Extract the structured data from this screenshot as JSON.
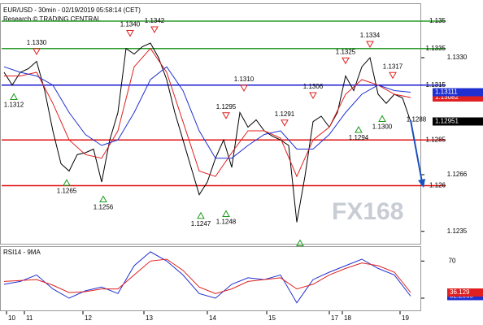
{
  "chart_data": {
    "type": "line",
    "title": "EUR/USD - 30min - 02/19/2019 05:58:14 (CET)",
    "subtitle": "Research © TRADING CENTRAL",
    "watermark": "FX168",
    "xlim": [
      -0.5,
      51.3
    ],
    "xticks": [
      {
        "value": 0.3,
        "label": "10"
      },
      {
        "value": 2.5,
        "label": "11"
      },
      {
        "value": 9.7,
        "label": "12"
      },
      {
        "value": 17.2,
        "label": "13"
      },
      {
        "value": 25,
        "label": "14"
      },
      {
        "value": 32.3,
        "label": "15"
      },
      {
        "value": 40,
        "label": "17"
      },
      {
        "value": 41.6,
        "label": "18"
      },
      {
        "value": 48.7,
        "label": "19"
      }
    ],
    "ylim": [
      1.12291,
      1.13571
    ],
    "yticks": [
      {
        "value": 1.133,
        "label": "1.1330"
      },
      1.1266,
      1.1235
    ],
    "series": [
      {
        "name": "Price",
        "color": "#000000",
        "x": [
          0,
          1,
          2,
          3,
          4,
          5,
          6,
          7,
          8,
          9,
          10,
          11,
          12,
          13,
          14,
          15,
          16,
          17,
          18,
          19,
          20,
          21,
          22,
          23,
          24,
          25,
          26,
          27,
          28,
          29,
          30,
          31,
          32,
          33,
          34,
          35,
          36,
          37,
          38,
          39,
          40,
          41,
          42,
          43,
          44,
          45,
          46,
          47,
          48,
          49,
          50
        ],
        "values": [
          1.1322,
          1.1315,
          1.1322,
          1.1324,
          1.1328,
          1.1312,
          1.129,
          1.1272,
          1.1268,
          1.1277,
          1.1278,
          1.128,
          1.1262,
          1.1285,
          1.13,
          1.1335,
          1.1332,
          1.1336,
          1.1338,
          1.133,
          1.1318,
          1.13,
          1.1285,
          1.127,
          1.1255,
          1.1262,
          1.1275,
          1.1285,
          1.127,
          1.13,
          1.1292,
          1.1296,
          1.129,
          1.1287,
          1.1285,
          1.1282,
          1.124,
          1.1265,
          1.1295,
          1.1298,
          1.1292,
          1.13,
          1.132,
          1.1312,
          1.1325,
          1.133,
          1.131,
          1.1305,
          1.131,
          1.1308,
          1.12951
        ]
      },
      {
        "name": "MA fast",
        "color": "#e02020",
        "x": [
          0,
          2,
          4,
          6,
          8,
          10,
          12,
          14,
          16,
          18,
          20,
          22,
          24,
          26,
          28,
          30,
          32,
          34,
          36,
          38,
          40,
          42,
          44,
          46,
          48,
          50
        ],
        "values": [
          1.132,
          1.132,
          1.1322,
          1.1305,
          1.1285,
          1.1277,
          1.1275,
          1.129,
          1.1325,
          1.1335,
          1.1322,
          1.1295,
          1.1268,
          1.1265,
          1.1278,
          1.129,
          1.129,
          1.1286,
          1.1265,
          1.1285,
          1.1292,
          1.131,
          1.1318,
          1.1315,
          1.131,
          1.13082
        ]
      },
      {
        "name": "MA slow",
        "color": "#2030d0",
        "x": [
          0,
          2,
          4,
          6,
          8,
          10,
          12,
          14,
          16,
          18,
          20,
          22,
          24,
          26,
          28,
          30,
          32,
          34,
          36,
          38,
          40,
          42,
          44,
          46,
          48,
          50
        ],
        "values": [
          1.1325,
          1.1322,
          1.132,
          1.1315,
          1.13,
          1.1288,
          1.1282,
          1.1285,
          1.13,
          1.1318,
          1.1325,
          1.1312,
          1.129,
          1.1275,
          1.1275,
          1.1282,
          1.1288,
          1.129,
          1.128,
          1.128,
          1.1288,
          1.13,
          1.131,
          1.1315,
          1.1312,
          1.13111
        ]
      }
    ],
    "levels": [
      {
        "value": 1.135,
        "color": "#2a9a2a"
      },
      {
        "value": 1.1335,
        "color": "#2a9a2a"
      },
      {
        "value": 1.1315,
        "color": "#1a1ad0"
      },
      {
        "value": 1.1285,
        "color": "#e01010"
      },
      {
        "value": 1.126,
        "color": "#e01010"
      }
    ],
    "annotations": [
      {
        "x": 4,
        "value": 1.133,
        "label": "1.1330",
        "marker": "down"
      },
      {
        "x": 1.2,
        "value": 1.1312,
        "label": "1.1312",
        "marker": "up"
      },
      {
        "x": 15.5,
        "value": 1.134,
        "label": "1.1340",
        "marker": "down"
      },
      {
        "x": 18.5,
        "value": 1.1342,
        "label": "1.1342",
        "marker": "down"
      },
      {
        "x": 7.7,
        "value": 1.1265,
        "label": "1.1265",
        "marker": "up"
      },
      {
        "x": 12.2,
        "value": 1.1256,
        "label": "1.1256",
        "marker": "up"
      },
      {
        "x": 29.5,
        "value": 1.131,
        "label": "1.1310",
        "marker": "down"
      },
      {
        "x": 27.3,
        "value": 1.1295,
        "label": "1.1295",
        "marker": "down"
      },
      {
        "x": 24.2,
        "value": 1.1247,
        "label": "1.1247",
        "marker": "up"
      },
      {
        "x": 27.3,
        "value": 1.1248,
        "label": "1.1248",
        "marker": "up"
      },
      {
        "x": 34.5,
        "value": 1.1291,
        "label": "1.1291",
        "marker": "down"
      },
      {
        "x": 38,
        "value": 1.1306,
        "label": "1.1306",
        "marker": "down"
      },
      {
        "x": 42,
        "value": 1.1325,
        "label": "1.1325",
        "marker": "down"
      },
      {
        "x": 45,
        "value": 1.1334,
        "label": "1.1334",
        "marker": "down"
      },
      {
        "x": 47.8,
        "value": 1.1317,
        "label": "1.1317",
        "marker": "down"
      },
      {
        "x": 43.6,
        "value": 1.1294,
        "label": "1.1294",
        "marker": "up"
      },
      {
        "x": 46.5,
        "value": 1.13,
        "label": "1.1300",
        "marker": "up"
      },
      {
        "x": 50.7,
        "value": 1.1288,
        "label": "1.1288"
      },
      {
        "x": 36.4,
        "value": 1.1232,
        "marker": "up"
      }
    ],
    "rsi": {
      "title": "RSI14 - 9MA",
      "ylim": [
        16,
        86
      ],
      "yticks": [
        70,
        30
      ],
      "series": [
        {
          "name": "RSI",
          "color": "#2030d0",
          "x": [
            0,
            2,
            4,
            6,
            8,
            10,
            12,
            14,
            16,
            18,
            20,
            22,
            24,
            26,
            28,
            30,
            32,
            34,
            36,
            38,
            40,
            42,
            44,
            46,
            48,
            50
          ],
          "values": [
            45,
            48,
            55,
            40,
            30,
            38,
            42,
            35,
            65,
            80,
            70,
            55,
            35,
            30,
            45,
            52,
            50,
            55,
            25,
            50,
            58,
            65,
            72,
            62,
            55,
            32.2065
          ]
        },
        {
          "name": "MA",
          "color": "#e02020",
          "x": [
            0,
            2,
            4,
            6,
            8,
            10,
            12,
            14,
            16,
            18,
            20,
            22,
            24,
            26,
            28,
            30,
            32,
            34,
            36,
            38,
            40,
            42,
            44,
            46,
            48,
            50
          ],
          "values": [
            48,
            49,
            50,
            44,
            36,
            37,
            40,
            40,
            55,
            70,
            72,
            60,
            42,
            35,
            40,
            48,
            50,
            52,
            40,
            45,
            55,
            62,
            68,
            65,
            58,
            36.129
          ]
        }
      ]
    }
  }
}
